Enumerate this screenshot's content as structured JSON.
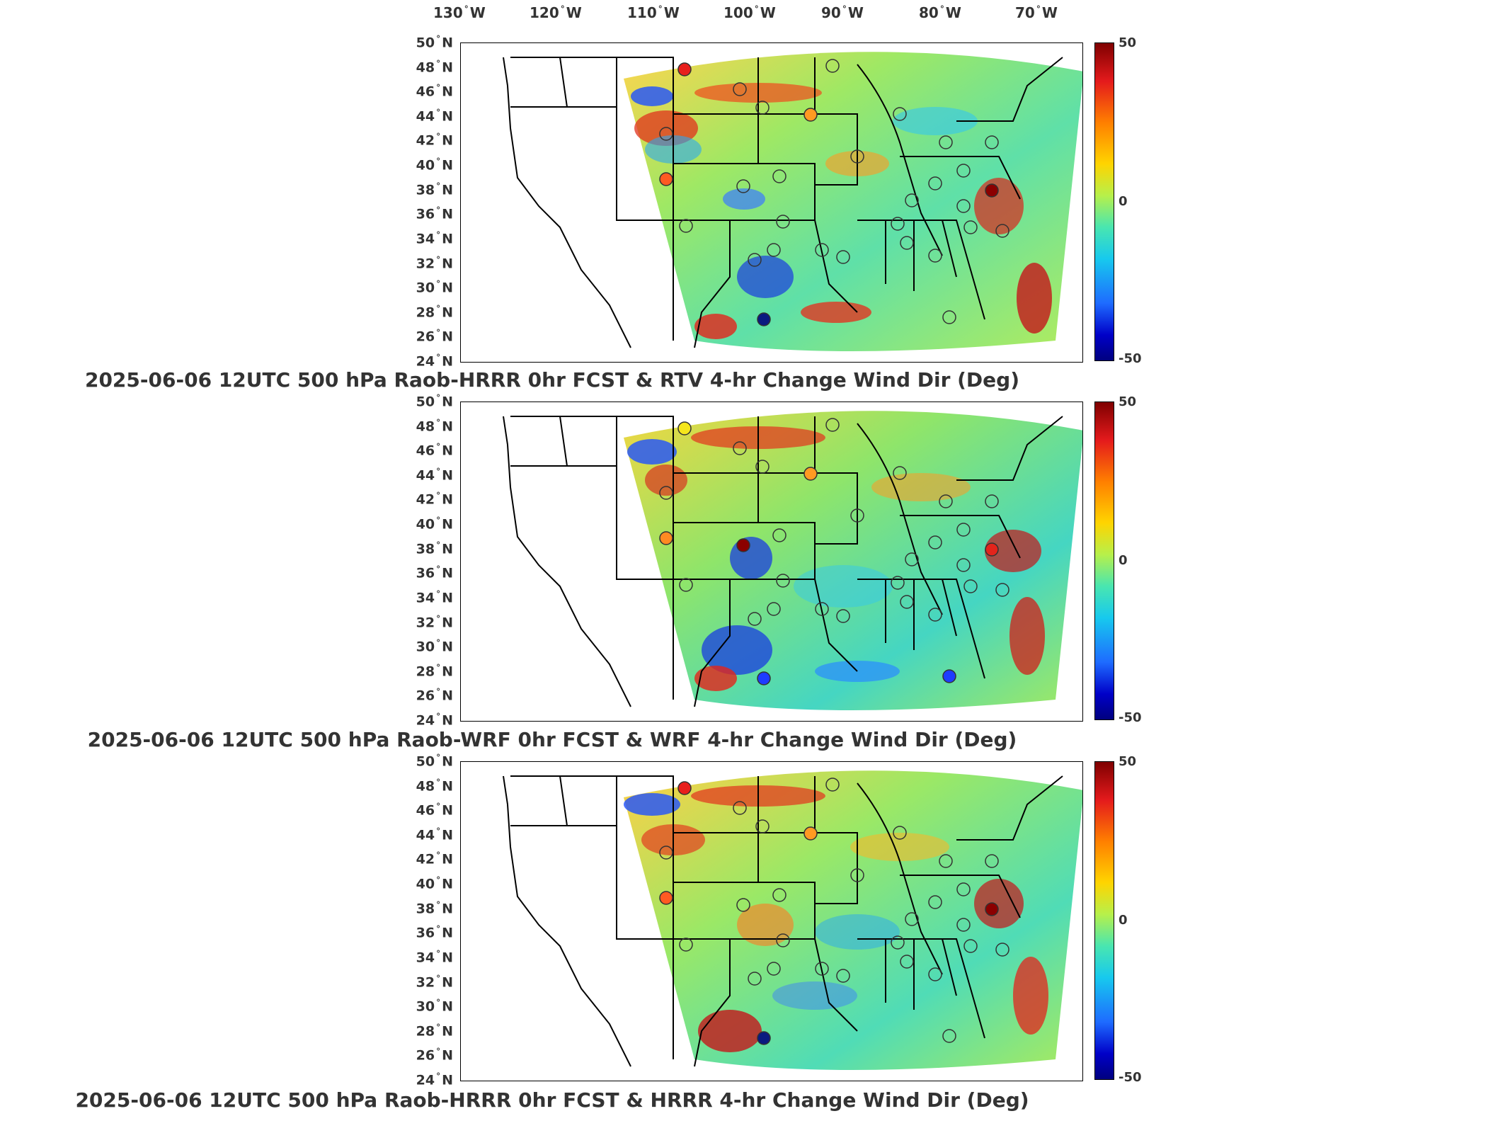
{
  "lon_labels": [
    "130",
    "120",
    "110",
    "100",
    "90",
    "80",
    "70"
  ],
  "lon_suffix": "W",
  "lat_labels": [
    "50",
    "48",
    "46",
    "44",
    "42",
    "40",
    "38",
    "36",
    "34",
    "32",
    "30",
    "28",
    "26",
    "24"
  ],
  "lat_suffix": "N",
  "colorbar": {
    "max": "50",
    "mid": "0",
    "min": "-50"
  },
  "panels": [
    {
      "title": "2025-06-06 12UTC 500 hPa Raob-HRRR 0hr FCST & RTV 4-hr Change Wind Dir (Deg)"
    },
    {
      "title": "2025-06-06 12UTC 500 hPa Raob-WRF 0hr FCST & WRF 4-hr Change Wind Dir (Deg)"
    },
    {
      "title": "2025-06-06 12UTC 500 hPa Raob-HRRR 0hr FCST & HRRR 4-hr Change Wind Dir (Deg)"
    }
  ],
  "colors": {
    "max": "#7f0000",
    "zero": "#9ef06a",
    "min": "#00007f"
  }
}
